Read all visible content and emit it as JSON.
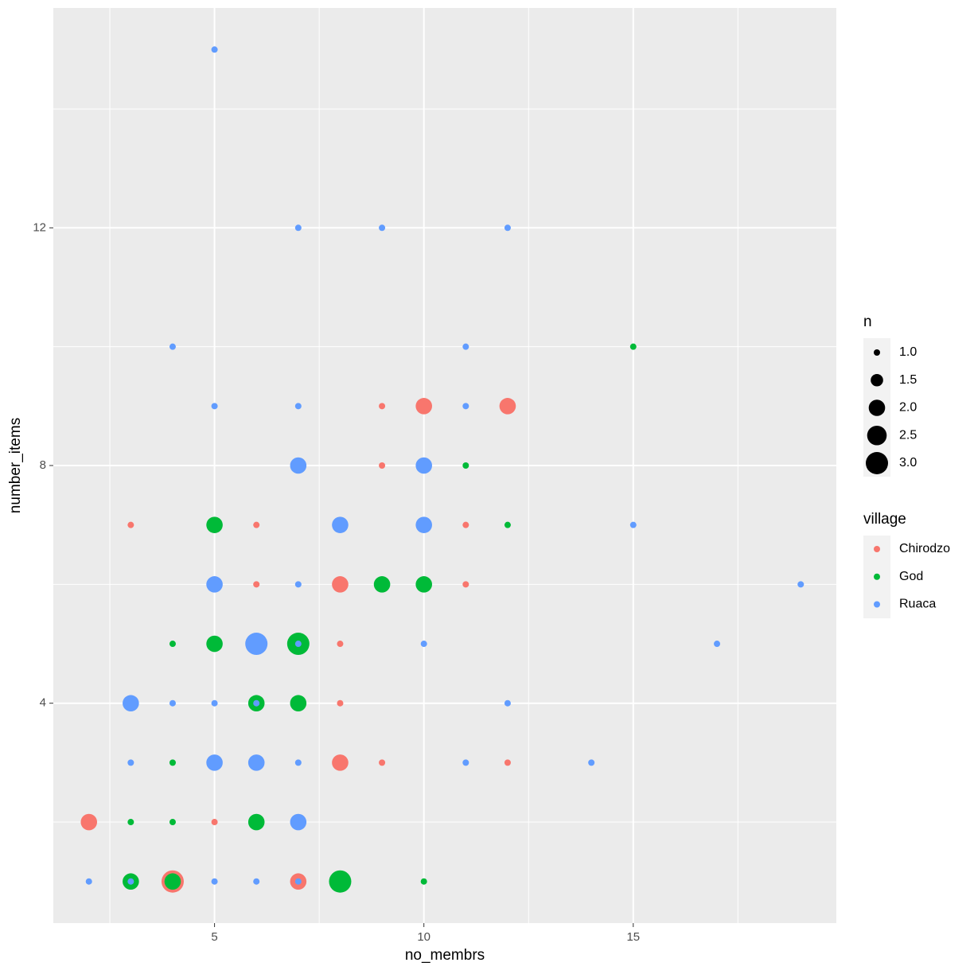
{
  "chart_data": {
    "type": "scatter",
    "x_label": "no_membrs",
    "y_label": "number_items",
    "xlim": [
      1.15,
      19.85
    ],
    "ylim": [
      0.3,
      15.7
    ],
    "xticks": [
      5,
      10,
      15
    ],
    "yticks": [
      4,
      8,
      12
    ],
    "xminor": [
      2.5,
      7.5,
      12.5,
      17.5
    ],
    "yminor": [
      2,
      6,
      10,
      14
    ],
    "grid": true,
    "size_title": "n",
    "size_lim": [
      1,
      3
    ],
    "size_ticks": [
      {
        "value": 1,
        "label": "1.0"
      },
      {
        "value": 1.5,
        "label": "1.5"
      },
      {
        "value": 2,
        "label": "2.0"
      },
      {
        "value": 2.5,
        "label": "2.5"
      },
      {
        "value": 3,
        "label": "3.0"
      }
    ],
    "legend_title": "village",
    "series": [
      {
        "name": "Chirodzo",
        "color": "#F8766D",
        "x": [
          4,
          7,
          2,
          5,
          8,
          9,
          12,
          8,
          8,
          6,
          8,
          11,
          3,
          6,
          11,
          9,
          9,
          10,
          12
        ],
        "y": [
          1,
          1,
          2,
          2,
          3,
          3,
          3,
          4,
          5,
          6,
          6,
          6,
          7,
          7,
          7,
          8,
          9,
          9,
          9
        ],
        "sizes": [
          3,
          2,
          2,
          1,
          2,
          1,
          1,
          1,
          1,
          1,
          2,
          1,
          1,
          1,
          1,
          1,
          1,
          2,
          2
        ]
      },
      {
        "name": "God",
        "color": "#00BA38",
        "x": [
          3,
          4,
          8,
          10,
          3,
          4,
          6,
          4,
          6,
          7,
          4,
          5,
          7,
          9,
          10,
          5,
          12,
          11,
          15
        ],
        "y": [
          1,
          1,
          1,
          1,
          2,
          2,
          2,
          3,
          4,
          4,
          5,
          5,
          5,
          6,
          6,
          7,
          7,
          8,
          10
        ],
        "sizes": [
          2,
          2,
          3,
          1,
          1,
          1,
          2,
          1,
          2,
          2,
          1,
          2,
          3,
          2,
          2,
          2,
          1,
          1,
          1
        ]
      },
      {
        "name": "Ruaca",
        "color": "#619CFF",
        "x": [
          2,
          3,
          5,
          6,
          7,
          7,
          3,
          5,
          6,
          7,
          11,
          14,
          3,
          4,
          5,
          6,
          12,
          6,
          7,
          10,
          17,
          5,
          7,
          19,
          8,
          10,
          15,
          7,
          10,
          5,
          7,
          11,
          4,
          11,
          7,
          9,
          12,
          5
        ],
        "y": [
          1,
          1,
          1,
          1,
          1,
          2,
          3,
          3,
          3,
          3,
          3,
          3,
          4,
          4,
          4,
          4,
          4,
          5,
          5,
          5,
          5,
          6,
          6,
          6,
          7,
          7,
          7,
          8,
          8,
          9,
          9,
          9,
          10,
          10,
          12,
          12,
          12,
          15
        ],
        "sizes": [
          1,
          1,
          1,
          1,
          1,
          2,
          1,
          2,
          2,
          1,
          1,
          1,
          2,
          1,
          1,
          1,
          1,
          3,
          1,
          1,
          1,
          2,
          1,
          1,
          2,
          2,
          1,
          2,
          2,
          1,
          1,
          1,
          1,
          1,
          1,
          1,
          1,
          1
        ]
      }
    ]
  }
}
